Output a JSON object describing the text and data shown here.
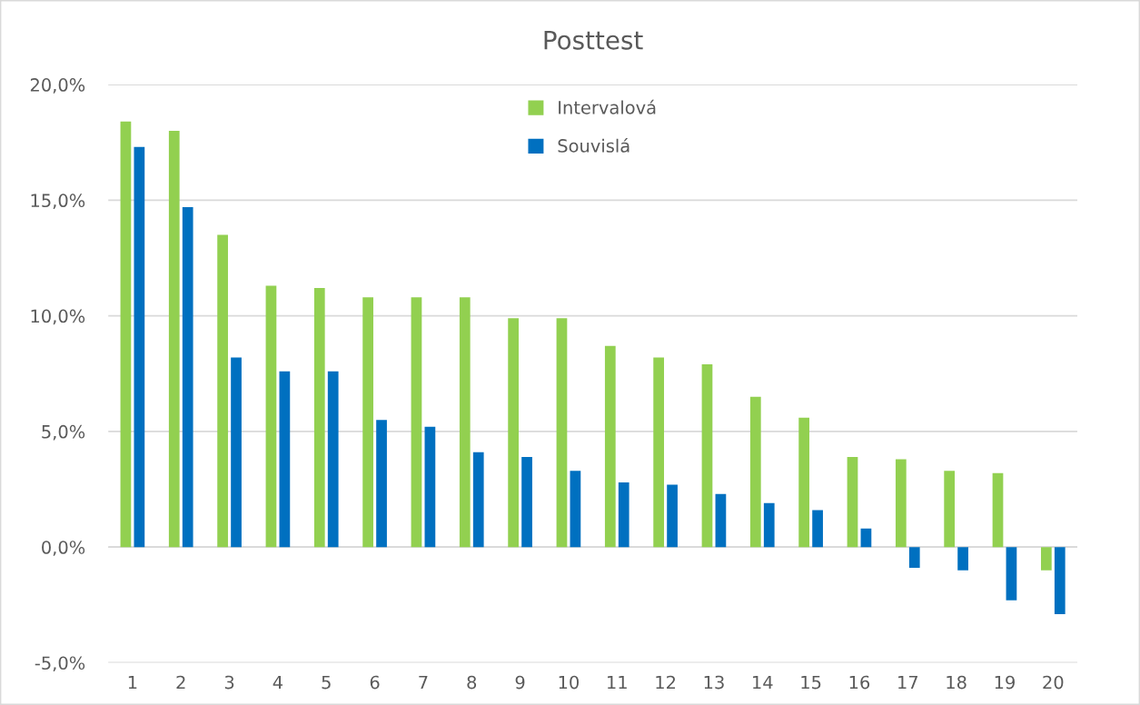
{
  "chart_data": {
    "type": "bar",
    "title": "Posttest",
    "categories": [
      "1",
      "2",
      "3",
      "4",
      "5",
      "6",
      "7",
      "8",
      "9",
      "10",
      "11",
      "12",
      "13",
      "14",
      "15",
      "16",
      "17",
      "18",
      "19",
      "20"
    ],
    "series": [
      {
        "name": "Intervalová",
        "color": "#92d050",
        "values": [
          18.4,
          18.0,
          13.5,
          11.3,
          11.2,
          10.8,
          10.8,
          10.8,
          9.9,
          9.9,
          8.7,
          8.2,
          7.9,
          6.5,
          5.6,
          3.9,
          3.8,
          3.3,
          3.2,
          -1.0
        ]
      },
      {
        "name": "Souvislá",
        "color": "#0070c0",
        "values": [
          17.3,
          14.7,
          8.2,
          7.6,
          7.6,
          5.5,
          5.2,
          4.1,
          3.9,
          3.3,
          2.8,
          2.7,
          2.3,
          1.9,
          1.6,
          0.8,
          -0.9,
          -1.0,
          -2.3,
          -2.9
        ]
      }
    ],
    "ylim": [
      -5,
      20
    ],
    "yticks": [
      {
        "value": -5,
        "label": "-5,0%"
      },
      {
        "value": 0,
        "label": "0,0%"
      },
      {
        "value": 5,
        "label": "5,0%"
      },
      {
        "value": 10,
        "label": "10,0%"
      },
      {
        "value": 15,
        "label": "15,0%"
      },
      {
        "value": 20,
        "label": "20,0%"
      }
    ],
    "grid": "y",
    "legend": "top"
  }
}
